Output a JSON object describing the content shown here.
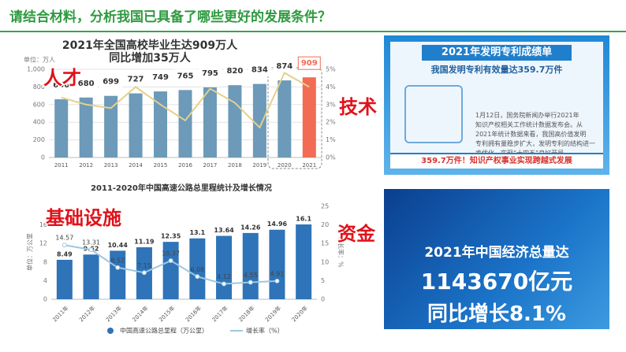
{
  "title": "请结合材料，分析我国已具备了哪些更好的发展条件？",
  "labels": [
    "人才",
    "技术",
    "基础设施",
    "资金"
  ],
  "chart_data": [
    {
      "type": "bar",
      "title": "2021年全国高校毕业生达909万人",
      "subtitle": "同比增加35万人",
      "y_label": "单位：万人",
      "categories": [
        "2011",
        "2012",
        "2013",
        "2014",
        "2015",
        "2016",
        "2017",
        "2018",
        "2019",
        "2020",
        "2021"
      ],
      "series": [
        {
          "type": "bar",
          "data_labels": true,
          "values": [
            660,
            680,
            699,
            727,
            749,
            765,
            795,
            820,
            834,
            874,
            909
          ],
          "colors": [
            "#6c9ab8",
            "#6c9ab8",
            "#6c9ab8",
            "#6c9ab8",
            "#6c9ab8",
            "#6c9ab8",
            "#6c9ab8",
            "#6c9ab8",
            "#6c9ab8",
            "#6c9ab8",
            "#f26b55"
          ]
        },
        {
          "type": "line",
          "axis": "y2",
          "color": "#e6cf8c",
          "values": [
            3.4,
            3.0,
            2.8,
            4.0,
            3.0,
            2.1,
            3.9,
            3.1,
            1.7,
            4.8,
            4.0
          ]
        }
      ],
      "ylim": [
        0,
        1000
      ],
      "yticks": [
        0,
        200,
        400,
        600,
        800,
        {
          "value": 1000,
          "label": "1,000"
        }
      ],
      "y2lim": [
        0,
        5
      ],
      "y2ticks": [
        {
          "value": 0,
          "label": "0%"
        },
        {
          "value": 1,
          "label": "1%"
        },
        {
          "value": 2,
          "label": "2%"
        },
        {
          "value": 3,
          "label": "3%"
        },
        {
          "value": 4,
          "label": "4%"
        },
        {
          "value": 5,
          "label": "5%"
        }
      ],
      "grid": true
    },
    {
      "type": "bar",
      "title": "2011-2020年中国高速公路总里程统计及增长情况",
      "y_label": "单位：万公里",
      "y2_label": "增长率：%",
      "categories": [
        "2011年",
        "2012年",
        "2013年",
        "2014年",
        "2015年",
        "2016年",
        "2017年",
        "2018年",
        "2019年",
        "2020年"
      ],
      "series": [
        {
          "type": "bar",
          "name": "中国高速公路总里程（万公里）",
          "color": "#2f73b8",
          "data_labels": true,
          "values": [
            8.49,
            9.62,
            10.44,
            11.19,
            12.35,
            13.1,
            13.64,
            14.26,
            14.96,
            16.1
          ]
        },
        {
          "type": "line",
          "name": "增长率（%）",
          "axis": "y2",
          "color": "#9ec7df",
          "data_labels": true,
          "values": [
            14.57,
            13.31,
            8.52,
            7.15,
            10.37,
            6.08,
            4.12,
            4.55,
            4.91,
            null
          ]
        }
      ],
      "ylim": [
        0,
        20
      ],
      "yticks": [
        0,
        4,
        8,
        12,
        16
      ],
      "y2lim": [
        0,
        25
      ],
      "y2ticks": [
        0,
        5,
        10,
        15,
        20,
        25
      ],
      "grid": false,
      "legend": "bottom"
    }
  ],
  "patent_card": {
    "title": "2021年发明专利成绩单",
    "subtitle": "我国发明专利有效量达359.7万件",
    "text_lines": [
      "1月12日，国务院新闻办举行2021年",
      "知识产权相关工作统计数据发布会。从",
      "2021年统计数据来看，我国高价值发明",
      "专利拥有量稳步扩大，发明专利的结构进一",
      "步优化，实现“十四五”良好开局。"
    ],
    "banner": "359.7万件！知识产权事业实现跨越式发展"
  },
  "economy_card": {
    "lines": [
      "2021年中国经济总量达",
      "1143670亿元",
      "同比增长8.1%"
    ]
  }
}
